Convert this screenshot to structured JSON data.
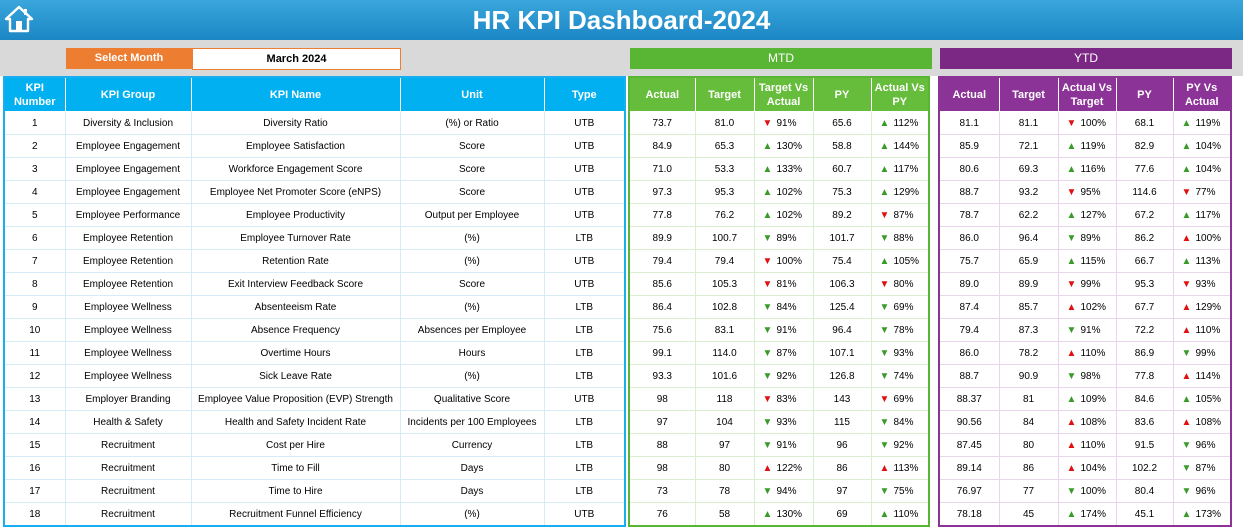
{
  "header": {
    "title": "HR KPI Dashboard-2024",
    "home_icon": "home-icon"
  },
  "selector": {
    "label": "Select Month",
    "value": "March 2024"
  },
  "groups": {
    "mtd": "MTD",
    "ytd": "YTD"
  },
  "colors": {
    "title_bg": "#1f8bc9",
    "kpi_header": "#00b0f0",
    "mtd": "#66bd3b",
    "ytd": "#8b3396",
    "select_label": "#ed7d31",
    "arrow_up": "#3a9a2a",
    "arrow_down": "#e01010"
  },
  "kpi_columns": [
    "KPI Number",
    "KPI Group",
    "KPI Name",
    "Unit",
    "Type"
  ],
  "mtd_columns": [
    "Actual",
    "Target",
    "Target Vs Actual",
    "PY",
    "Actual Vs PY"
  ],
  "ytd_columns": [
    "Actual",
    "Target",
    "Actual Vs Target",
    "PY",
    "PY Vs Actual"
  ],
  "rows": [
    {
      "num": "1",
      "group": "Diversity & Inclusion",
      "name": "Diversity Ratio",
      "unit": "(%) or Ratio",
      "type": "UTB",
      "mtd": {
        "actual": "73.7",
        "target": "81.0",
        "tva_dir": "down-red",
        "tva": "91%",
        "py": "65.6",
        "avp_dir": "up-green",
        "avp": "112%"
      },
      "ytd": {
        "actual": "81.1",
        "target": "81.1",
        "avt_dir": "down-red",
        "avt": "100%",
        "py": "68.1",
        "pva_dir": "up-green",
        "pva": "119%"
      }
    },
    {
      "num": "2",
      "group": "Employee Engagement",
      "name": "Employee Satisfaction",
      "unit": "Score",
      "type": "UTB",
      "mtd": {
        "actual": "84.9",
        "target": "65.3",
        "tva_dir": "up-green",
        "tva": "130%",
        "py": "58.8",
        "avp_dir": "up-green",
        "avp": "144%"
      },
      "ytd": {
        "actual": "85.9",
        "target": "72.1",
        "avt_dir": "up-green",
        "avt": "119%",
        "py": "82.9",
        "pva_dir": "up-green",
        "pva": "104%"
      }
    },
    {
      "num": "3",
      "group": "Employee Engagement",
      "name": "Workforce Engagement Score",
      "unit": "Score",
      "type": "UTB",
      "mtd": {
        "actual": "71.0",
        "target": "53.3",
        "tva_dir": "up-green",
        "tva": "133%",
        "py": "60.7",
        "avp_dir": "up-green",
        "avp": "117%"
      },
      "ytd": {
        "actual": "80.6",
        "target": "69.3",
        "avt_dir": "up-green",
        "avt": "116%",
        "py": "77.6",
        "pva_dir": "up-green",
        "pva": "104%"
      }
    },
    {
      "num": "4",
      "group": "Employee Engagement",
      "name": "Employee Net Promoter Score (eNPS)",
      "unit": "Score",
      "type": "UTB",
      "mtd": {
        "actual": "97.3",
        "target": "95.3",
        "tva_dir": "up-green",
        "tva": "102%",
        "py": "75.3",
        "avp_dir": "up-green",
        "avp": "129%"
      },
      "ytd": {
        "actual": "88.7",
        "target": "93.2",
        "avt_dir": "down-red",
        "avt": "95%",
        "py": "114.6",
        "pva_dir": "down-red",
        "pva": "77%"
      }
    },
    {
      "num": "5",
      "group": "Employee Performance",
      "name": "Employee Productivity",
      "unit": "Output per Employee",
      "type": "UTB",
      "mtd": {
        "actual": "77.8",
        "target": "76.2",
        "tva_dir": "up-green",
        "tva": "102%",
        "py": "89.2",
        "avp_dir": "down-red",
        "avp": "87%"
      },
      "ytd": {
        "actual": "78.7",
        "target": "62.2",
        "avt_dir": "up-green",
        "avt": "127%",
        "py": "67.2",
        "pva_dir": "up-green",
        "pva": "117%"
      }
    },
    {
      "num": "6",
      "group": "Employee Retention",
      "name": "Employee Turnover Rate",
      "unit": "(%)",
      "type": "LTB",
      "mtd": {
        "actual": "89.9",
        "target": "100.7",
        "tva_dir": "down-green",
        "tva": "89%",
        "py": "101.7",
        "avp_dir": "down-green",
        "avp": "88%"
      },
      "ytd": {
        "actual": "86.0",
        "target": "96.4",
        "avt_dir": "down-green",
        "avt": "89%",
        "py": "86.2",
        "pva_dir": "up-red",
        "pva": "100%"
      }
    },
    {
      "num": "7",
      "group": "Employee Retention",
      "name": "Retention Rate",
      "unit": "(%)",
      "type": "UTB",
      "mtd": {
        "actual": "79.4",
        "target": "79.4",
        "tva_dir": "down-red",
        "tva": "100%",
        "py": "75.4",
        "avp_dir": "up-green",
        "avp": "105%"
      },
      "ytd": {
        "actual": "75.7",
        "target": "65.9",
        "avt_dir": "up-green",
        "avt": "115%",
        "py": "66.7",
        "pva_dir": "up-green",
        "pva": "113%"
      }
    },
    {
      "num": "8",
      "group": "Employee Retention",
      "name": "Exit Interview Feedback Score",
      "unit": "Score",
      "type": "UTB",
      "mtd": {
        "actual": "85.6",
        "target": "105.3",
        "tva_dir": "down-red",
        "tva": "81%",
        "py": "106.3",
        "avp_dir": "down-red",
        "avp": "80%"
      },
      "ytd": {
        "actual": "89.0",
        "target": "89.9",
        "avt_dir": "down-red",
        "avt": "99%",
        "py": "95.3",
        "pva_dir": "down-red",
        "pva": "93%"
      }
    },
    {
      "num": "9",
      "group": "Employee Wellness",
      "name": "Absenteeism Rate",
      "unit": "(%)",
      "type": "LTB",
      "mtd": {
        "actual": "86.4",
        "target": "102.8",
        "tva_dir": "down-green",
        "tva": "84%",
        "py": "125.4",
        "avp_dir": "down-green",
        "avp": "69%"
      },
      "ytd": {
        "actual": "87.4",
        "target": "85.7",
        "avt_dir": "up-red",
        "avt": "102%",
        "py": "67.7",
        "pva_dir": "up-red",
        "pva": "129%"
      }
    },
    {
      "num": "10",
      "group": "Employee Wellness",
      "name": "Absence Frequency",
      "unit": "Absences per Employee",
      "type": "LTB",
      "mtd": {
        "actual": "75.6",
        "target": "83.1",
        "tva_dir": "down-green",
        "tva": "91%",
        "py": "96.4",
        "avp_dir": "down-green",
        "avp": "78%"
      },
      "ytd": {
        "actual": "79.4",
        "target": "87.3",
        "avt_dir": "down-green",
        "avt": "91%",
        "py": "72.2",
        "pva_dir": "up-red",
        "pva": "110%"
      }
    },
    {
      "num": "11",
      "group": "Employee Wellness",
      "name": "Overtime Hours",
      "unit": "Hours",
      "type": "LTB",
      "mtd": {
        "actual": "99.1",
        "target": "114.0",
        "tva_dir": "down-green",
        "tva": "87%",
        "py": "107.1",
        "avp_dir": "down-green",
        "avp": "93%"
      },
      "ytd": {
        "actual": "86.0",
        "target": "78.2",
        "avt_dir": "up-red",
        "avt": "110%",
        "py": "86.9",
        "pva_dir": "down-green",
        "pva": "99%"
      }
    },
    {
      "num": "12",
      "group": "Employee Wellness",
      "name": "Sick Leave Rate",
      "unit": "(%)",
      "type": "LTB",
      "mtd": {
        "actual": "93.3",
        "target": "101.6",
        "tva_dir": "down-green",
        "tva": "92%",
        "py": "126.8",
        "avp_dir": "down-green",
        "avp": "74%"
      },
      "ytd": {
        "actual": "88.7",
        "target": "90.9",
        "avt_dir": "down-green",
        "avt": "98%",
        "py": "77.8",
        "pva_dir": "up-red",
        "pva": "114%"
      }
    },
    {
      "num": "13",
      "group": "Employer Branding",
      "name": "Employee Value Proposition (EVP) Strength",
      "unit": "Qualitative Score",
      "type": "UTB",
      "mtd": {
        "actual": "98",
        "target": "118",
        "tva_dir": "down-red",
        "tva": "83%",
        "py": "143",
        "avp_dir": "down-red",
        "avp": "69%"
      },
      "ytd": {
        "actual": "88.37",
        "target": "81",
        "avt_dir": "up-green",
        "avt": "109%",
        "py": "84.6",
        "pva_dir": "up-green",
        "pva": "105%"
      }
    },
    {
      "num": "14",
      "group": "Health & Safety",
      "name": "Health and Safety Incident Rate",
      "unit": "Incidents per 100 Employees",
      "type": "LTB",
      "mtd": {
        "actual": "97",
        "target": "104",
        "tva_dir": "down-green",
        "tva": "93%",
        "py": "115",
        "avp_dir": "down-green",
        "avp": "84%"
      },
      "ytd": {
        "actual": "90.56",
        "target": "84",
        "avt_dir": "up-red",
        "avt": "108%",
        "py": "83.6",
        "pva_dir": "up-red",
        "pva": "108%"
      }
    },
    {
      "num": "15",
      "group": "Recruitment",
      "name": "Cost per Hire",
      "unit": "Currency",
      "type": "LTB",
      "mtd": {
        "actual": "88",
        "target": "97",
        "tva_dir": "down-green",
        "tva": "91%",
        "py": "96",
        "avp_dir": "down-green",
        "avp": "92%"
      },
      "ytd": {
        "actual": "87.45",
        "target": "80",
        "avt_dir": "up-red",
        "avt": "110%",
        "py": "91.5",
        "pva_dir": "down-green",
        "pva": "96%"
      }
    },
    {
      "num": "16",
      "group": "Recruitment",
      "name": "Time to Fill",
      "unit": "Days",
      "type": "LTB",
      "mtd": {
        "actual": "98",
        "target": "80",
        "tva_dir": "up-red",
        "tva": "122%",
        "py": "86",
        "avp_dir": "up-red",
        "avp": "113%"
      },
      "ytd": {
        "actual": "89.14",
        "target": "86",
        "avt_dir": "up-red",
        "avt": "104%",
        "py": "102.2",
        "pva_dir": "down-green",
        "pva": "87%"
      }
    },
    {
      "num": "17",
      "group": "Recruitment",
      "name": "Time to Hire",
      "unit": "Days",
      "type": "LTB",
      "mtd": {
        "actual": "73",
        "target": "78",
        "tva_dir": "down-green",
        "tva": "94%",
        "py": "97",
        "avp_dir": "down-green",
        "avp": "75%"
      },
      "ytd": {
        "actual": "76.97",
        "target": "77",
        "avt_dir": "down-green",
        "avt": "100%",
        "py": "80.4",
        "pva_dir": "down-green",
        "pva": "96%"
      }
    },
    {
      "num": "18",
      "group": "Recruitment",
      "name": "Recruitment Funnel Efficiency",
      "unit": "(%)",
      "type": "UTB",
      "mtd": {
        "actual": "76",
        "target": "58",
        "tva_dir": "up-green",
        "tva": "130%",
        "py": "69",
        "avp_dir": "up-green",
        "avp": "110%"
      },
      "ytd": {
        "actual": "78.18",
        "target": "45",
        "avt_dir": "up-green",
        "avt": "174%",
        "py": "45.1",
        "pva_dir": "up-green",
        "pva": "173%"
      }
    }
  ]
}
